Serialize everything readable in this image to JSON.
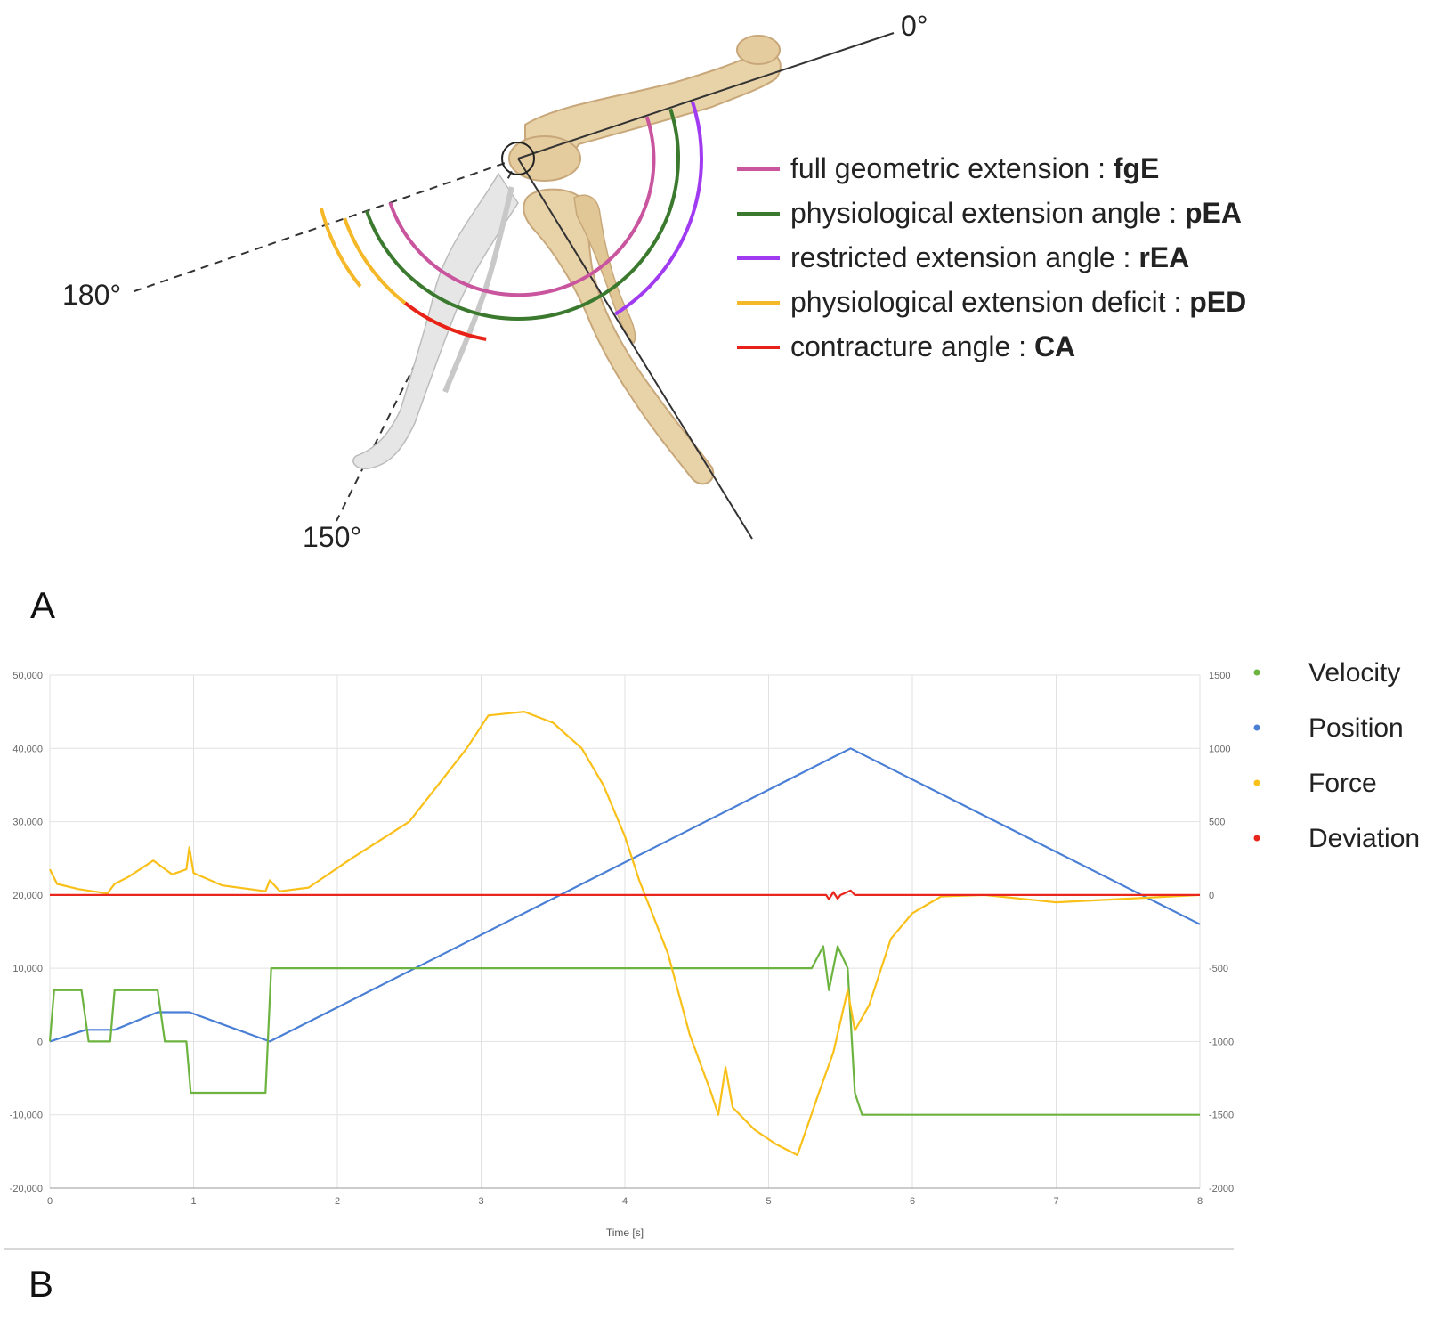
{
  "panel_a": {
    "label": "A",
    "angle_labels": [
      "0°",
      "180°",
      "150°"
    ],
    "legend": [
      {
        "text": "full geometric extension : ",
        "abbr": "fgE",
        "color": "#c9559e"
      },
      {
        "text": "physiological extension angle : ",
        "abbr": "pEA",
        "color": "#3b7a2e"
      },
      {
        "text": "restricted extension angle : ",
        "abbr": "rEA",
        "color": "#a13bf2"
      },
      {
        "text": "physiological extension deficit : ",
        "abbr": "pED",
        "color": "#f5b829"
      },
      {
        "text": "contracture angle : ",
        "abbr": "CA",
        "color": "#e8221b"
      }
    ],
    "colors": {
      "bone": "#e8d2a8",
      "bone_shadow": "#c8a87a",
      "bone_ghost": "#e4e4e4"
    }
  },
  "panel_b": {
    "label": "B",
    "chart_data": {
      "type": "line",
      "xlabel": "Time [s]",
      "xlim": [
        0,
        8
      ],
      "xticks": [
        "0",
        "1",
        "2",
        "3",
        "4",
        "5",
        "6",
        "7",
        "8"
      ],
      "ylim_left": [
        -20000,
        50000
      ],
      "yticks_left": [
        "50,000",
        "40,000",
        "30,000",
        "20,000",
        "10,000",
        "0",
        "-10,000",
        "-20,000"
      ],
      "ylim_right": [
        -2000,
        1500
      ],
      "yticks_right": [
        "1500",
        "1000",
        "500",
        "0",
        "-500",
        "-1000",
        "-1500",
        "-2000"
      ],
      "grid": true,
      "legend_position": "right",
      "series": [
        {
          "name": "Velocity",
          "color": "#6cb33f",
          "axis": "left",
          "points": [
            [
              0,
              0
            ],
            [
              0.03,
              7000
            ],
            [
              0.22,
              7000
            ],
            [
              0.27,
              0
            ],
            [
              0.42,
              0
            ],
            [
              0.45,
              7000
            ],
            [
              0.75,
              7000
            ],
            [
              0.8,
              0
            ],
            [
              0.95,
              0
            ],
            [
              0.98,
              -7000
            ],
            [
              1.5,
              -7000
            ],
            [
              1.54,
              10000
            ],
            [
              3.8,
              10000
            ],
            [
              4.3,
              10000
            ],
            [
              4.7,
              10000
            ],
            [
              5.3,
              10000
            ],
            [
              5.38,
              13000
            ],
            [
              5.42,
              7000
            ],
            [
              5.48,
              13000
            ],
            [
              5.55,
              10000
            ],
            [
              5.6,
              -7000
            ],
            [
              5.65,
              -10000
            ],
            [
              8,
              -10000
            ]
          ]
        },
        {
          "name": "Position",
          "color": "#4a7fd6",
          "axis": "left",
          "points": [
            [
              0,
              0
            ],
            [
              0.25,
              1600
            ],
            [
              0.45,
              1600
            ],
            [
              0.75,
              4000
            ],
            [
              0.97,
              4000
            ],
            [
              1.53,
              0
            ],
            [
              5.57,
              40000
            ],
            [
              8,
              16000
            ]
          ]
        },
        {
          "name": "Force",
          "color": "#f9c01a",
          "axis": "left",
          "points": [
            [
              0,
              23500
            ],
            [
              0.05,
              21500
            ],
            [
              0.2,
              20800
            ],
            [
              0.4,
              20200
            ],
            [
              0.45,
              21500
            ],
            [
              0.55,
              22500
            ],
            [
              0.72,
              24700
            ],
            [
              0.85,
              22800
            ],
            [
              0.95,
              23500
            ],
            [
              0.97,
              26500
            ],
            [
              1.0,
              23000
            ],
            [
              1.2,
              21300
            ],
            [
              1.5,
              20500
            ],
            [
              1.53,
              22000
            ],
            [
              1.6,
              20500
            ],
            [
              1.8,
              21000
            ],
            [
              2.1,
              25000
            ],
            [
              2.5,
              30000
            ],
            [
              2.7,
              35000
            ],
            [
              2.9,
              40000
            ],
            [
              3.05,
              44500
            ],
            [
              3.3,
              45000
            ],
            [
              3.5,
              43500
            ],
            [
              3.7,
              40000
            ],
            [
              3.85,
              35000
            ],
            [
              4.0,
              28000
            ],
            [
              4.1,
              22000
            ],
            [
              4.3,
              12000
            ],
            [
              4.45,
              1000
            ],
            [
              4.6,
              -7000
            ],
            [
              4.65,
              -10000
            ],
            [
              4.7,
              -3500
            ],
            [
              4.75,
              -9000
            ],
            [
              4.9,
              -12000
            ],
            [
              5.05,
              -14000
            ],
            [
              5.2,
              -15500
            ],
            [
              5.35,
              -7000
            ],
            [
              5.45,
              -1500
            ],
            [
              5.55,
              7000
            ],
            [
              5.6,
              1500
            ],
            [
              5.7,
              5000
            ],
            [
              5.85,
              14000
            ],
            [
              6.0,
              17500
            ],
            [
              6.2,
              19800
            ],
            [
              6.5,
              20000
            ],
            [
              7.0,
              19000
            ],
            [
              7.5,
              19500
            ],
            [
              8,
              20000
            ]
          ]
        },
        {
          "name": "Deviation",
          "color": "#e8261c",
          "axis": "right",
          "points": [
            [
              0,
              0
            ],
            [
              5.4,
              0
            ],
            [
              5.42,
              -30
            ],
            [
              5.45,
              20
            ],
            [
              5.48,
              -25
            ],
            [
              5.5,
              0
            ],
            [
              5.57,
              30
            ],
            [
              5.6,
              0
            ],
            [
              8,
              0
            ]
          ]
        }
      ]
    }
  }
}
